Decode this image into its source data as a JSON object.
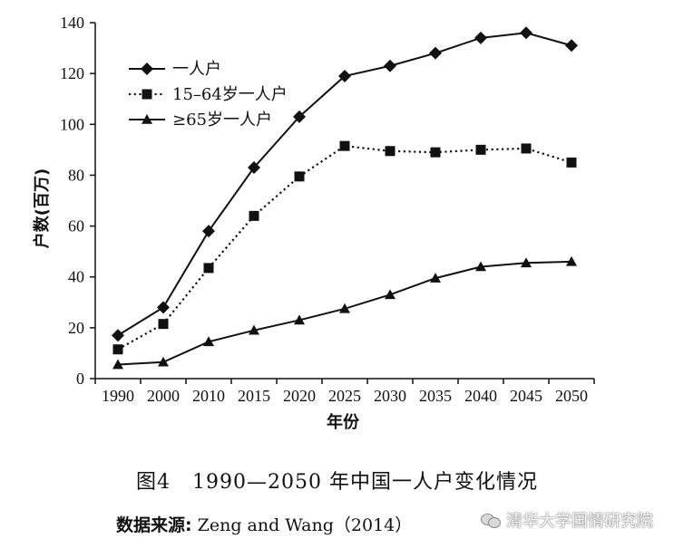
{
  "chart_data": {
    "type": "line",
    "categories": [
      "1990",
      "2000",
      "2010",
      "2015",
      "2020",
      "2025",
      "2030",
      "2035",
      "2040",
      "2045",
      "2050"
    ],
    "series": [
      {
        "name": "一人户",
        "marker": "diamond",
        "line": "solid",
        "values": [
          17,
          28,
          58,
          83,
          103,
          119,
          123,
          128,
          134,
          136,
          131
        ]
      },
      {
        "name": "15–64岁一人户",
        "marker": "square",
        "line": "dotted",
        "values": [
          11.5,
          21.5,
          43.5,
          64,
          79.5,
          91.5,
          89.5,
          89,
          90,
          90.5,
          85
        ]
      },
      {
        "name": "≥65岁一人户",
        "marker": "triangle",
        "line": "solid",
        "values": [
          5.5,
          6.5,
          14.5,
          19,
          23,
          27.5,
          33,
          39.5,
          44,
          45.5,
          46
        ]
      }
    ],
    "ylabel": "户数(百万)",
    "xlabel": "年份",
    "ylim": [
      0,
      140
    ],
    "yticks": [
      "0",
      "20",
      "40",
      "60",
      "80",
      "100",
      "120",
      "140"
    ],
    "legend_position": "top-left",
    "grid": false
  },
  "caption": {
    "figure_no": "图4",
    "text": "1990—2050 年中国一人户变化情况"
  },
  "source": {
    "label": "数据来源:",
    "text": "Zeng and Wang（2014）"
  },
  "watermark": {
    "text": "清华大学国情研究院"
  },
  "colors": {
    "line": "#111111",
    "background": "#ffffff"
  }
}
